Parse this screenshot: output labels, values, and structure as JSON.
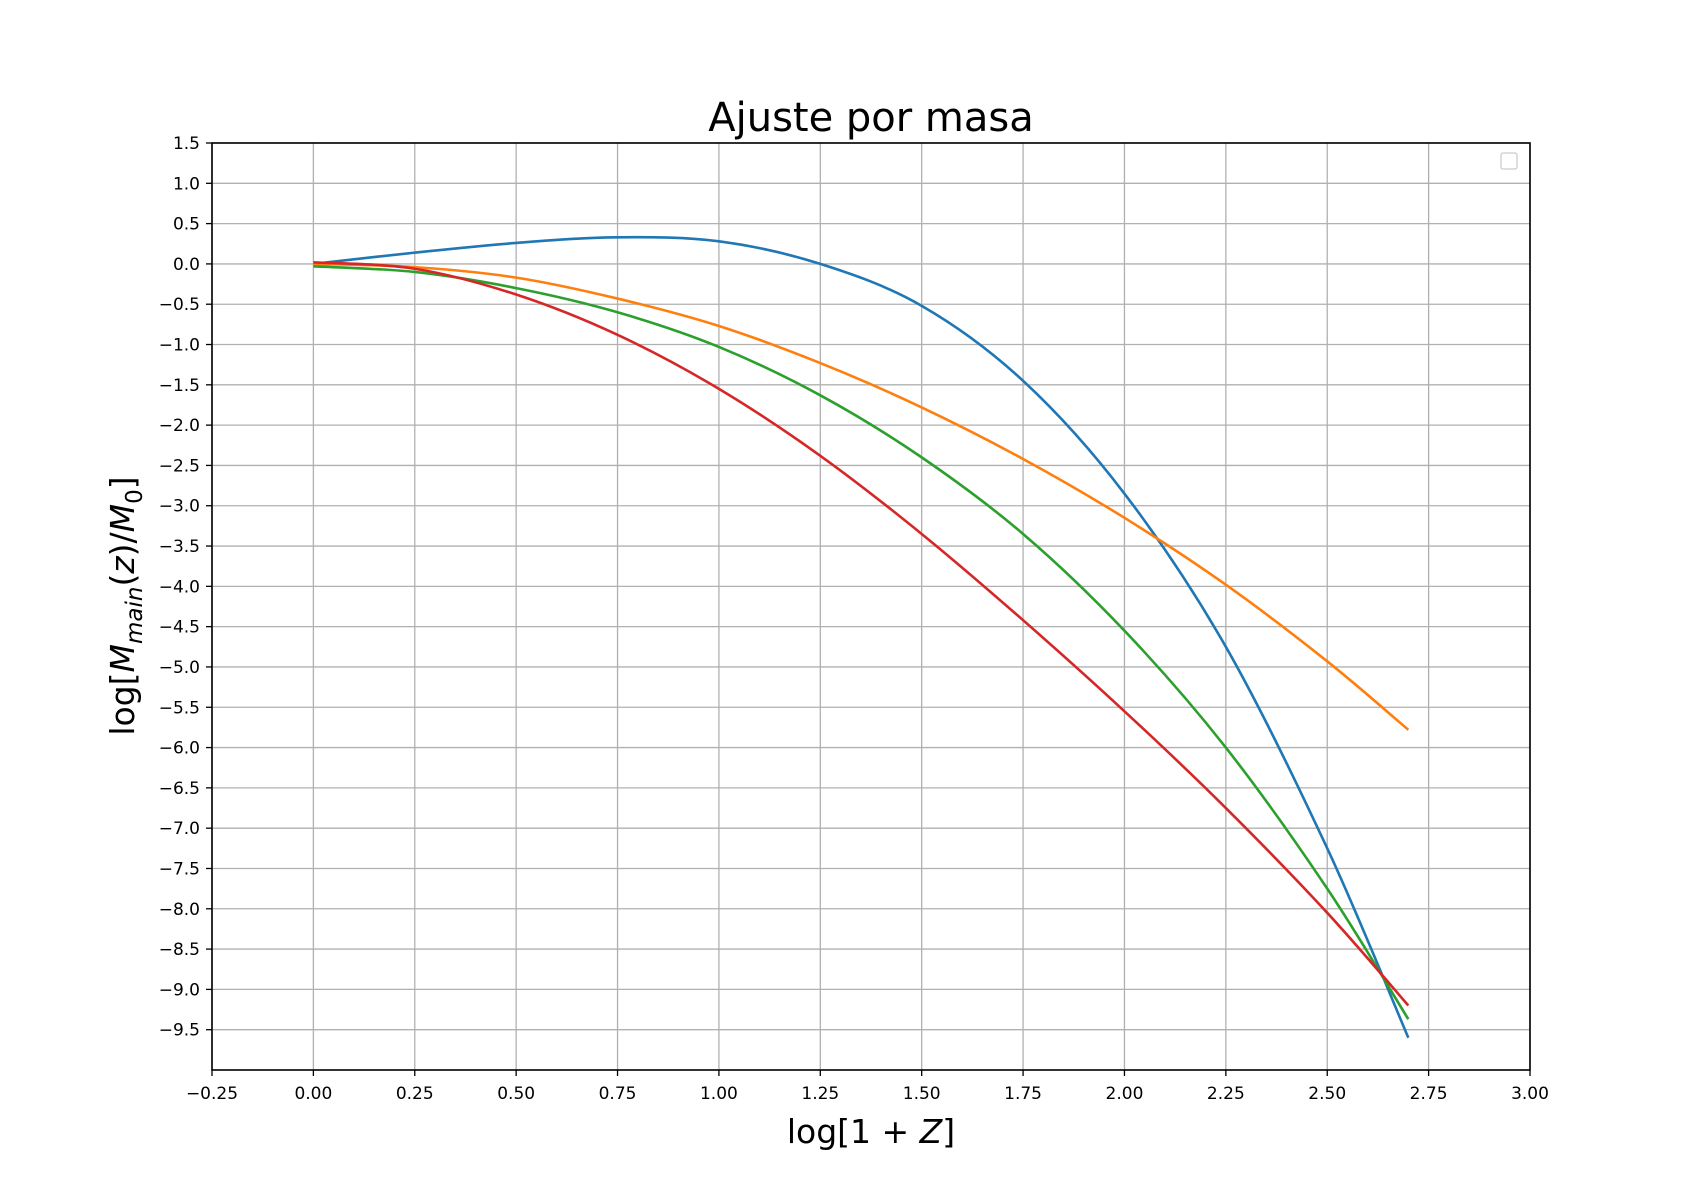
{
  "chart_data": {
    "type": "line",
    "title": "Ajuste por masa",
    "xlabel": {
      "prefix": "log[1 + ",
      "var": "Z",
      "suffix": "]"
    },
    "ylabel": {
      "prefix": "log[",
      "var": "M",
      "sub": "main",
      "mid": "(",
      "var2": "z",
      "mid2": ")/",
      "var3": "M",
      "sub3": "0",
      "suffix": "]"
    },
    "xlim": [
      -0.25,
      3.0
    ],
    "ylim": [
      -10.0,
      1.5
    ],
    "xticks": [
      "-0.25",
      "0.00",
      "0.25",
      "0.50",
      "0.75",
      "1.00",
      "1.25",
      "1.50",
      "1.75",
      "2.00",
      "2.25",
      "2.50",
      "2.75",
      "3.00"
    ],
    "yticks": [
      "1.5",
      "1.0",
      "0.5",
      "0.0",
      "-0.5",
      "-1.0",
      "-1.5",
      "-2.0",
      "-2.5",
      "-3.0",
      "-3.5",
      "-4.0",
      "-4.5",
      "-5.0",
      "-5.5",
      "-6.0",
      "-6.5",
      "-7.0",
      "-7.5",
      "-8.0",
      "-8.5",
      "-9.0",
      "-9.5"
    ],
    "grid": true,
    "legend": "top-right, empty",
    "series": [
      {
        "color": "#1f77b4",
        "x": [
          0.0,
          0.25,
          0.5,
          0.75,
          1.0,
          1.25,
          1.5,
          1.75,
          2.0,
          2.25,
          2.5,
          2.7
        ],
        "y": [
          0.0,
          0.14,
          0.26,
          0.33,
          0.28,
          0.0,
          -0.52,
          -1.45,
          -2.85,
          -4.75,
          -7.25,
          -9.6
        ]
      },
      {
        "color": "#ff7f0e",
        "x": [
          0.0,
          0.25,
          0.5,
          0.75,
          1.0,
          1.25,
          1.5,
          1.75,
          2.0,
          2.25,
          2.5,
          2.7
        ],
        "y": [
          0.0,
          -0.04,
          -0.17,
          -0.43,
          -0.77,
          -1.23,
          -1.78,
          -2.42,
          -3.15,
          -3.98,
          -4.93,
          -5.78
        ]
      },
      {
        "color": "#2ca02c",
        "x": [
          0.0,
          0.25,
          0.5,
          0.75,
          1.0,
          1.25,
          1.5,
          1.75,
          2.0,
          2.25,
          2.5,
          2.7
        ],
        "y": [
          -0.03,
          -0.1,
          -0.3,
          -0.6,
          -1.03,
          -1.63,
          -2.4,
          -3.35,
          -4.55,
          -6.0,
          -7.75,
          -9.37
        ]
      },
      {
        "color": "#d62728",
        "x": [
          0.0,
          0.25,
          0.5,
          0.75,
          1.0,
          1.25,
          1.5,
          1.75,
          2.0,
          2.25,
          2.5,
          2.7
        ],
        "y": [
          0.02,
          -0.06,
          -0.38,
          -0.88,
          -1.55,
          -2.38,
          -3.35,
          -4.42,
          -5.55,
          -6.75,
          -8.05,
          -9.2
        ]
      }
    ]
  }
}
